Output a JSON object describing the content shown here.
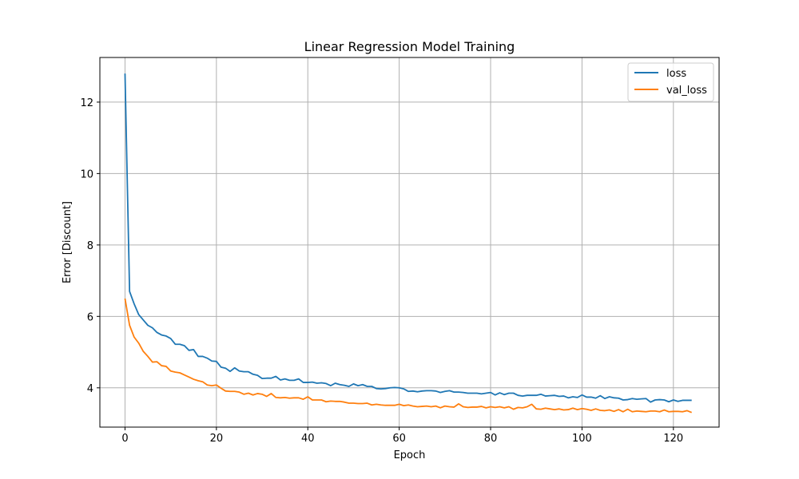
{
  "chart_data": {
    "type": "line",
    "title": "Linear Regression Model Training",
    "xlabel": "Epoch",
    "ylabel": "Error [Discount]",
    "xlim": [
      -5.5,
      130
    ],
    "ylim": [
      2.9,
      13.25
    ],
    "xticks": [
      0,
      20,
      40,
      60,
      80,
      100,
      120
    ],
    "yticks": [
      4,
      6,
      8,
      10,
      12
    ],
    "grid": true,
    "legend": "top-right",
    "colors": {
      "loss": "#1f77b4",
      "val_loss": "#ff7f0e"
    },
    "series": [
      {
        "name": "loss",
        "x": [
          0,
          1,
          2,
          3,
          4,
          5,
          6,
          7,
          8,
          9,
          10,
          11,
          12,
          13,
          14,
          15,
          16,
          17,
          18,
          19,
          20,
          21,
          22,
          23,
          24,
          25,
          26,
          27,
          28,
          29,
          30,
          31,
          32,
          33,
          34,
          35,
          36,
          37,
          38,
          39,
          40,
          41,
          42,
          43,
          44,
          45,
          46,
          47,
          48,
          49,
          50,
          51,
          52,
          53,
          54,
          55,
          56,
          57,
          58,
          59,
          60,
          61,
          62,
          63,
          64,
          65,
          66,
          67,
          68,
          69,
          70,
          71,
          72,
          73,
          74,
          75,
          76,
          77,
          78,
          79,
          80,
          81,
          82,
          83,
          84,
          85,
          86,
          87,
          88,
          89,
          90,
          91,
          92,
          93,
          94,
          95,
          96,
          97,
          98,
          99,
          100,
          101,
          102,
          103,
          104,
          105,
          106,
          107,
          108,
          109,
          110,
          111,
          112,
          113,
          114,
          115,
          116,
          117,
          118,
          119,
          120,
          121,
          122,
          123,
          124
        ],
        "values": [
          12.8,
          6.7,
          6.35,
          6.05,
          5.9,
          5.75,
          5.68,
          5.55,
          5.48,
          5.45,
          5.38,
          5.22,
          5.22,
          5.18,
          5.05,
          5.07,
          4.88,
          4.88,
          4.83,
          4.75,
          4.74,
          4.58,
          4.55,
          4.46,
          4.56,
          4.47,
          4.45,
          4.45,
          4.38,
          4.35,
          4.26,
          4.27,
          4.27,
          4.32,
          4.22,
          4.25,
          4.21,
          4.21,
          4.25,
          4.15,
          4.15,
          4.16,
          4.13,
          4.14,
          4.12,
          4.06,
          4.13,
          4.09,
          4.07,
          4.04,
          4.11,
          4.06,
          4.09,
          4.04,
          4.04,
          3.98,
          3.97,
          3.98,
          4.0,
          4.01,
          4.0,
          3.97,
          3.9,
          3.91,
          3.89,
          3.91,
          3.92,
          3.92,
          3.91,
          3.87,
          3.9,
          3.92,
          3.88,
          3.88,
          3.87,
          3.85,
          3.85,
          3.85,
          3.83,
          3.85,
          3.87,
          3.8,
          3.86,
          3.81,
          3.85,
          3.85,
          3.79,
          3.77,
          3.79,
          3.79,
          3.79,
          3.82,
          3.77,
          3.78,
          3.79,
          3.76,
          3.77,
          3.72,
          3.75,
          3.73,
          3.8,
          3.74,
          3.74,
          3.71,
          3.78,
          3.7,
          3.75,
          3.72,
          3.71,
          3.66,
          3.67,
          3.7,
          3.68,
          3.69,
          3.7,
          3.6,
          3.66,
          3.67,
          3.66,
          3.61,
          3.66,
          3.62,
          3.65,
          3.65,
          3.65
        ]
      },
      {
        "name": "val_loss",
        "x": [
          0,
          1,
          2,
          3,
          4,
          5,
          6,
          7,
          8,
          9,
          10,
          11,
          12,
          13,
          14,
          15,
          16,
          17,
          18,
          19,
          20,
          21,
          22,
          23,
          24,
          25,
          26,
          27,
          28,
          29,
          30,
          31,
          32,
          33,
          34,
          35,
          36,
          37,
          38,
          39,
          40,
          41,
          42,
          43,
          44,
          45,
          46,
          47,
          48,
          49,
          50,
          51,
          52,
          53,
          54,
          55,
          56,
          57,
          58,
          59,
          60,
          61,
          62,
          63,
          64,
          65,
          66,
          67,
          68,
          69,
          70,
          71,
          72,
          73,
          74,
          75,
          76,
          77,
          78,
          79,
          80,
          81,
          82,
          83,
          84,
          85,
          86,
          87,
          88,
          89,
          90,
          91,
          92,
          93,
          94,
          95,
          96,
          97,
          98,
          99,
          100,
          101,
          102,
          103,
          104,
          105,
          106,
          107,
          108,
          109,
          110,
          111,
          112,
          113,
          114,
          115,
          116,
          117,
          118,
          119,
          120,
          121,
          122,
          123,
          124
        ],
        "values": [
          6.5,
          5.75,
          5.42,
          5.25,
          5.02,
          4.88,
          4.72,
          4.73,
          4.62,
          4.6,
          4.47,
          4.44,
          4.42,
          4.36,
          4.3,
          4.24,
          4.2,
          4.17,
          4.08,
          4.06,
          4.08,
          3.99,
          3.91,
          3.9,
          3.9,
          3.88,
          3.82,
          3.85,
          3.8,
          3.84,
          3.82,
          3.76,
          3.84,
          3.73,
          3.72,
          3.73,
          3.71,
          3.72,
          3.72,
          3.68,
          3.75,
          3.66,
          3.66,
          3.66,
          3.61,
          3.63,
          3.62,
          3.62,
          3.6,
          3.57,
          3.57,
          3.56,
          3.56,
          3.57,
          3.52,
          3.54,
          3.52,
          3.51,
          3.51,
          3.51,
          3.54,
          3.5,
          3.52,
          3.49,
          3.47,
          3.48,
          3.49,
          3.47,
          3.49,
          3.44,
          3.49,
          3.47,
          3.46,
          3.55,
          3.47,
          3.45,
          3.46,
          3.46,
          3.48,
          3.44,
          3.47,
          3.45,
          3.47,
          3.44,
          3.47,
          3.4,
          3.45,
          3.44,
          3.47,
          3.54,
          3.41,
          3.4,
          3.43,
          3.41,
          3.39,
          3.41,
          3.38,
          3.39,
          3.43,
          3.39,
          3.42,
          3.4,
          3.37,
          3.41,
          3.37,
          3.36,
          3.38,
          3.34,
          3.39,
          3.33,
          3.4,
          3.33,
          3.35,
          3.34,
          3.33,
          3.35,
          3.35,
          3.33,
          3.38,
          3.33,
          3.34,
          3.34,
          3.33,
          3.36,
          3.31
        ]
      }
    ]
  }
}
